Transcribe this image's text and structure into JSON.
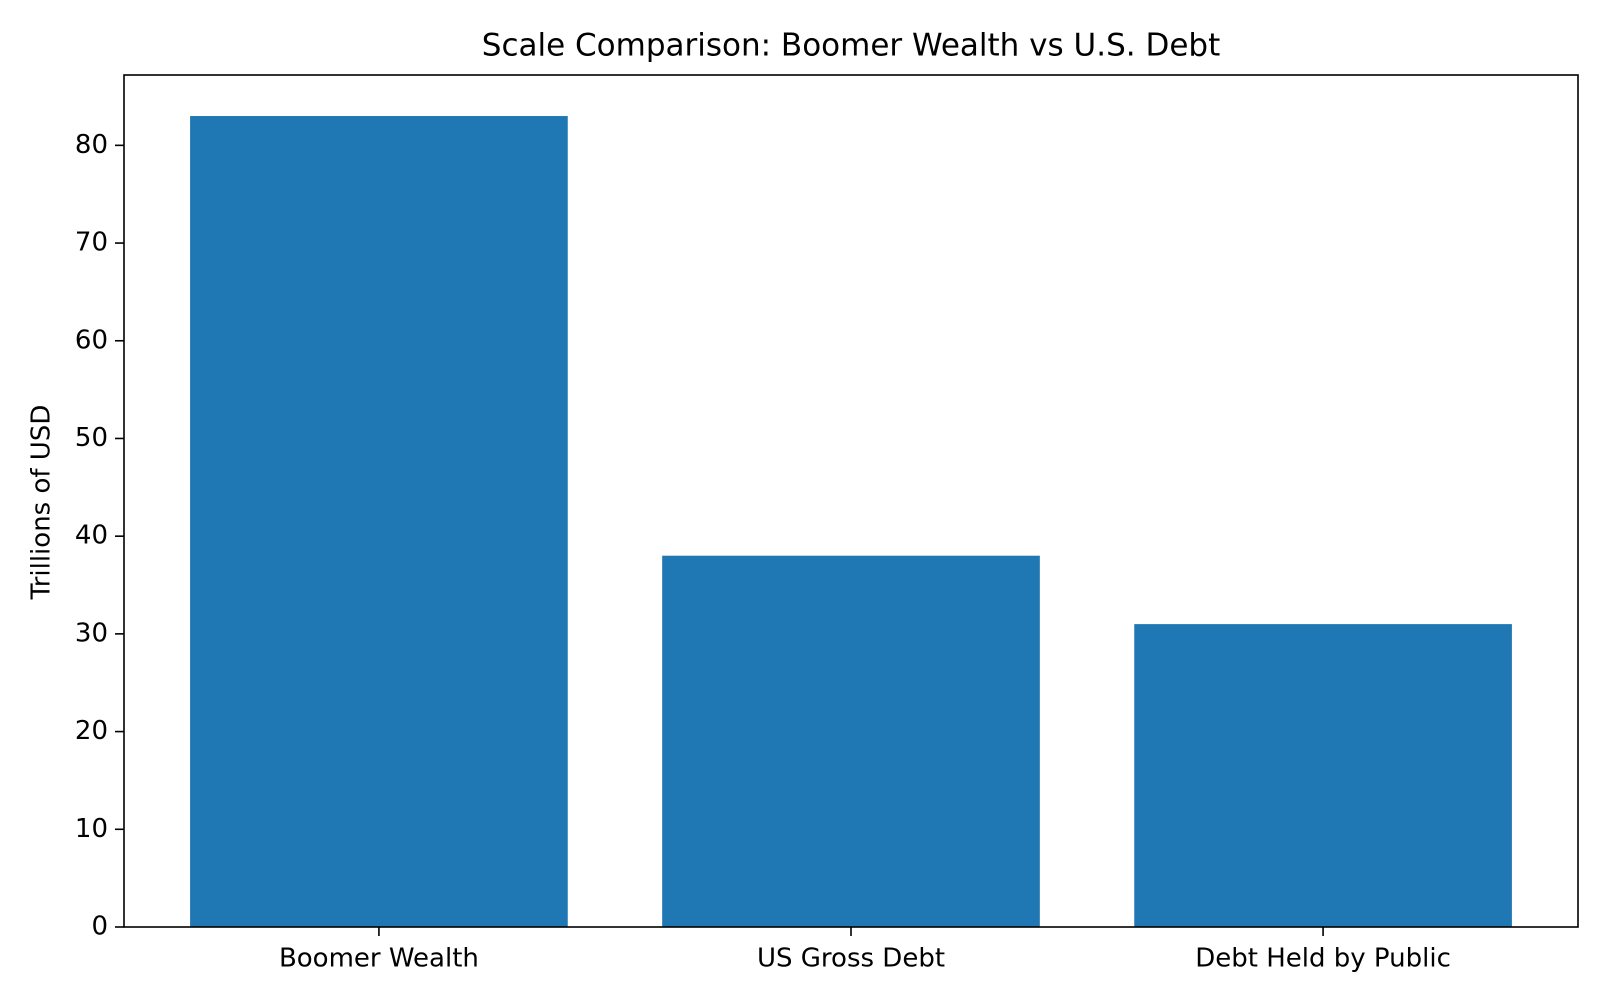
{
  "chart_data": {
    "type": "bar",
    "title": "Scale Comparison: Boomer Wealth vs U.S. Debt",
    "y_label": "Trillions of USD",
    "categories": [
      "Boomer Wealth",
      "US Gross Debt",
      "Debt Held by Public"
    ],
    "values": [
      83,
      38,
      31
    ],
    "color": "#1f77b4",
    "ylim": [
      0,
      87.2
    ],
    "yticks": [
      0,
      10,
      20,
      30,
      40,
      50,
      60,
      70,
      80
    ],
    "grid": false
  }
}
